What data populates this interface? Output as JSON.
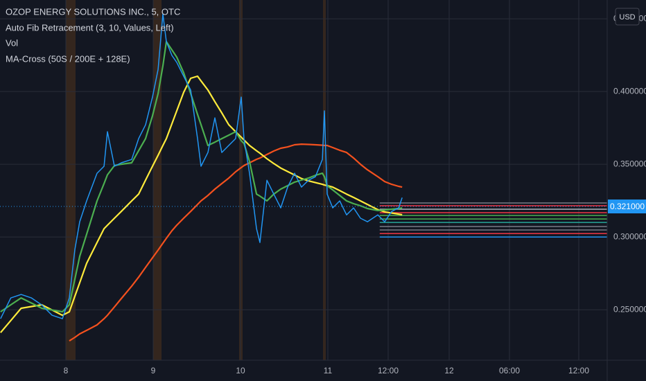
{
  "chart_data": {
    "type": "line",
    "title": "OZOP ENERGY SOLUTIONS INC., 5, OTC",
    "indicators": [
      "Auto Fib Retracement (3, 10, Values, Left)",
      "Vol",
      "MA-Cross (50S / 200E + 128E)"
    ],
    "currency": "USD",
    "x": [
      7.246,
      7.365,
      7.484,
      7.603,
      7.722,
      7.841,
      7.96,
      8.04,
      8.103,
      8.159,
      8.238,
      8.357,
      8.437,
      8.476,
      8.556,
      8.635,
      8.754,
      8.833,
      8.913,
      8.992,
      9.056,
      9.111,
      9.151,
      9.214,
      9.27,
      9.349,
      9.429,
      9.508,
      9.548,
      9.627,
      9.706,
      9.786,
      9.865,
      9.944,
      10.008,
      10.04,
      10.103,
      10.183,
      10.222,
      10.302,
      10.381,
      10.46,
      10.54,
      10.619,
      10.698,
      10.778,
      10.857,
      10.937,
      10.96,
      10.992,
      11.04,
      11.098,
      11.155,
      11.213,
      11.27,
      11.328,
      11.414,
      11.471,
      11.529,
      11.586,
      11.615
    ],
    "series": [
      {
        "color": "#2196f3",
        "values": [
          0.2438,
          0.2581,
          0.2605,
          0.2581,
          0.2533,
          0.2462,
          0.2438,
          0.2581,
          0.2914,
          0.3105,
          0.3248,
          0.3438,
          0.3486,
          0.3724,
          0.3486,
          0.351,
          0.3533,
          0.3676,
          0.3771,
          0.3962,
          0.4152,
          0.4533,
          0.4343,
          0.4248,
          0.42,
          0.4105,
          0.401,
          0.3676,
          0.3486,
          0.3581,
          0.3819,
          0.3581,
          0.3629,
          0.3676,
          0.3962,
          0.3676,
          0.3438,
          0.3057,
          0.2962,
          0.339,
          0.3295,
          0.32,
          0.3343,
          0.3438,
          0.3343,
          0.339,
          0.3414,
          0.3533,
          0.3867,
          0.3295,
          0.32,
          0.3248,
          0.3152,
          0.32,
          0.3129,
          0.3105,
          0.3152,
          0.3105,
          0.3176,
          0.32,
          0.3271
        ]
      },
      {
        "color": "#4caf50",
        "values": [
          0.2486,
          0.2534,
          0.2581,
          0.2546,
          0.251,
          0.2498,
          0.2486,
          0.2534,
          0.271,
          0.2867,
          0.3019,
          0.3248,
          0.3367,
          0.3427,
          0.3491,
          0.35,
          0.351,
          0.3593,
          0.3676,
          0.3833,
          0.3986,
          0.4176,
          0.4343,
          0.4286,
          0.4236,
          0.4129,
          0.3986,
          0.3843,
          0.3772,
          0.3629,
          0.3652,
          0.3676,
          0.37,
          0.3724,
          0.3662,
          0.3643,
          0.3519,
          0.3295,
          0.3281,
          0.3248,
          0.3295,
          0.3329,
          0.3353,
          0.3377,
          0.3391,
          0.3405,
          0.3424,
          0.3438,
          0.3415,
          0.3353,
          0.3324,
          0.3286,
          0.3248,
          0.3229,
          0.3215,
          0.3196,
          0.3182,
          0.3186,
          0.3191,
          0.3196,
          0.32
        ]
      },
      {
        "color": "#ffeb3b",
        "values": [
          0.2343,
          0.2426,
          0.251,
          0.2522,
          0.2534,
          0.2498,
          0.2462,
          0.2486,
          0.2593,
          0.2686,
          0.2819,
          0.2962,
          0.3057,
          0.3081,
          0.3129,
          0.3176,
          0.3248,
          0.3295,
          0.3391,
          0.3486,
          0.3562,
          0.3629,
          0.3676,
          0.3778,
          0.3867,
          0.3995,
          0.4091,
          0.4105,
          0.4073,
          0.401,
          0.393,
          0.3853,
          0.3772,
          0.3724,
          0.3686,
          0.3667,
          0.3629,
          0.3593,
          0.3576,
          0.3538,
          0.3505,
          0.3474,
          0.345,
          0.3426,
          0.3402,
          0.3386,
          0.3374,
          0.3362,
          0.3357,
          0.3353,
          0.3343,
          0.3319,
          0.3295,
          0.3272,
          0.3248,
          0.3224,
          0.3188,
          0.3173,
          0.3165,
          0.3157,
          0.3153
        ]
      },
      {
        "color": "#f4511e",
        "values": [
          null,
          null,
          null,
          null,
          null,
          null,
          null,
          0.2286,
          0.231,
          0.2334,
          0.2358,
          0.2396,
          0.2438,
          0.2462,
          0.2519,
          0.2577,
          0.2662,
          0.2724,
          0.2791,
          0.2857,
          0.291,
          0.2957,
          0.2991,
          0.3043,
          0.3081,
          0.3129,
          0.3176,
          0.3224,
          0.3248,
          0.3286,
          0.3329,
          0.3367,
          0.3405,
          0.3448,
          0.3477,
          0.3491,
          0.351,
          0.3534,
          0.3543,
          0.3567,
          0.3591,
          0.361,
          0.3619,
          0.3634,
          0.3638,
          0.3636,
          0.3634,
          0.3631,
          0.3629,
          0.3629,
          0.3615,
          0.3596,
          0.3581,
          0.3543,
          0.35,
          0.3462,
          0.3415,
          0.3381,
          0.3362,
          0.3348,
          0.3343
        ]
      }
    ],
    "fib_from": 11.43,
    "fib_levels": [
      {
        "value": 0.3234,
        "color": "#787b86"
      },
      {
        "value": 0.3215,
        "color": "#f23645"
      },
      {
        "value": 0.3191,
        "color": "#b2b5be"
      },
      {
        "value": 0.3167,
        "color": "#f23645"
      },
      {
        "value": 0.3148,
        "color": "#4caf50"
      },
      {
        "value": 0.3124,
        "color": "#4caf50"
      },
      {
        "value": 0.31,
        "color": "#26a69a"
      },
      {
        "value": 0.3072,
        "color": "#787b86"
      },
      {
        "value": 0.3048,
        "color": "#787b86"
      },
      {
        "value": 0.3024,
        "color": "#f23645"
      },
      {
        "value": 0.3,
        "color": "#2196f3"
      }
    ],
    "last_price": {
      "value": 0.321,
      "label": "0.321000"
    },
    "xlim": [
      7.24,
      12.6
    ],
    "xticks": [
      8,
      9,
      10,
      11,
      {
        "value": 11.5,
        "label": "12:00"
      },
      12,
      {
        "value": 12.25,
        "label": "06:00"
      },
      {
        "value": 12.5,
        "label": "12:00"
      }
    ],
    "ylim": [
      0.2153,
      0.4629
    ],
    "yticks": [
      {
        "value": 0.25,
        "label": "0.250000"
      },
      {
        "value": 0.3,
        "label": "0.300000"
      },
      {
        "value": 0.35,
        "label": "0.350000"
      },
      {
        "value": 0.4,
        "label": "0.400000"
      },
      {
        "value": 0.45,
        "label": "0.450000"
      }
    ],
    "grid": true
  }
}
